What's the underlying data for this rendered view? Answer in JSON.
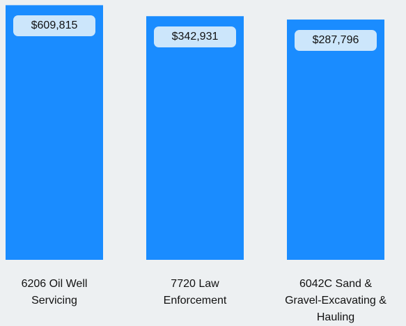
{
  "chart_data": {
    "type": "bar",
    "categories": [
      "6206 Oil Well Servicing",
      "7720 Law Enforcement",
      "6042C Sand & Gravel-Excavating & Hauling"
    ],
    "values": [
      609815,
      342931,
      287796
    ],
    "value_labels": [
      "$609,815",
      "$342,931",
      "$287,796"
    ],
    "color": "#1a8cff",
    "log_scale": true,
    "ylim": [
      1,
      800000
    ]
  }
}
